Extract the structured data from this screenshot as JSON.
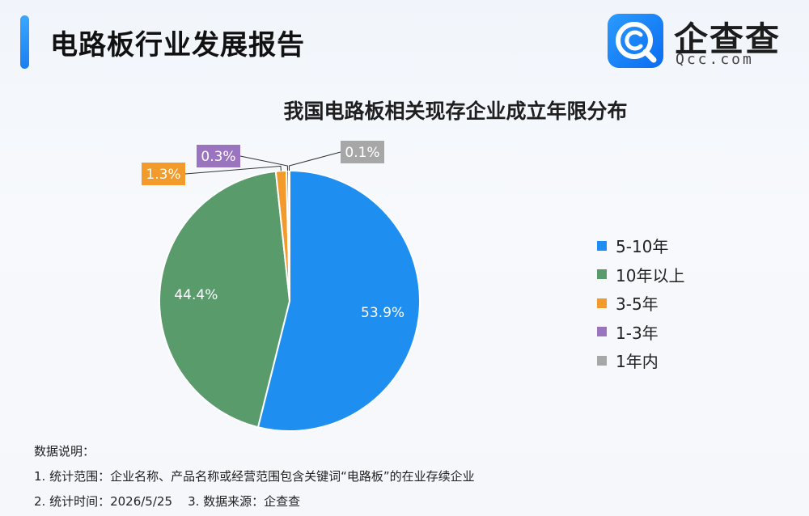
{
  "header": {
    "title": "电路板行业发展报告",
    "logo_cn": "企查查",
    "logo_en": "Qcc.com",
    "accent": "#1a7ff0"
  },
  "chart_data": {
    "type": "pie",
    "title": "我国电路板相关现存企业成立年限分布",
    "legend_position": "right",
    "slices": [
      {
        "label": "5-10年",
        "value": 53.9,
        "display": "53.9%",
        "color": "#1e8ff0"
      },
      {
        "label": "10年以上",
        "value": 44.4,
        "display": "44.4%",
        "color": "#5a9b6c"
      },
      {
        "label": "3-5年",
        "value": 1.3,
        "display": "1.3%",
        "color": "#f39a2d"
      },
      {
        "label": "1-3年",
        "value": 0.3,
        "display": "0.3%",
        "color": "#9b74bf"
      },
      {
        "label": "1年内",
        "value": 0.1,
        "display": "0.1%",
        "color": "#a7a7a7"
      }
    ]
  },
  "notes": {
    "heading": "数据说明：",
    "line1": "1. 统计范围：企业名称、产品名称或经营范围包含关键词“电路板”的在业存续企业",
    "line2": "2. 统计时间：2026/5/25    3. 数据来源：企查查"
  }
}
